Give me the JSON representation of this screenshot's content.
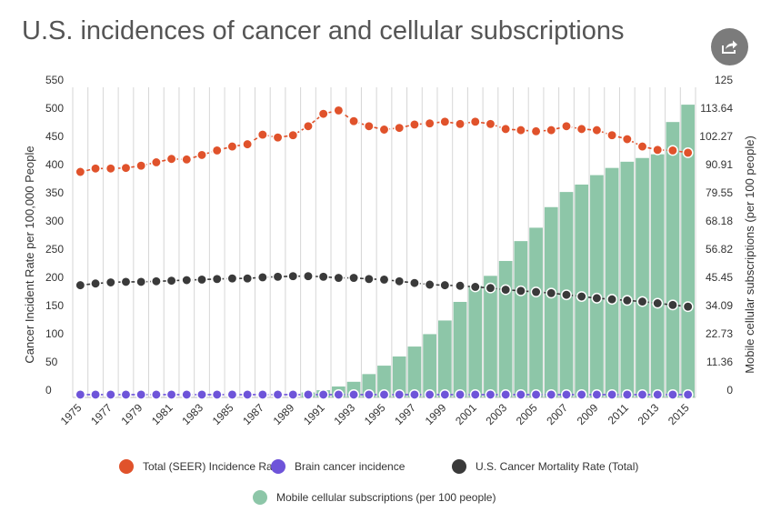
{
  "title": "U.S. incidences of cancer and cellular subscriptions",
  "share_icon": "share-icon",
  "chart_data": {
    "type": "bar",
    "title": "U.S. incidences of cancer and cellular subscriptions",
    "x": [
      1975,
      1976,
      1977,
      1978,
      1979,
      1980,
      1981,
      1982,
      1983,
      1984,
      1985,
      1986,
      1987,
      1988,
      1989,
      1990,
      1991,
      1992,
      1993,
      1994,
      1995,
      1996,
      1997,
      1998,
      1999,
      2000,
      2001,
      2002,
      2003,
      2004,
      2005,
      2006,
      2007,
      2008,
      2009,
      2010,
      2011,
      2012,
      2013,
      2014,
      2015
    ],
    "x_tick_labels": [
      "1975",
      "1977",
      "1979",
      "1981",
      "1983",
      "1985",
      "1987",
      "1989",
      "1991",
      "1993",
      "1995",
      "1997",
      "1999",
      "2001",
      "2003",
      "2005",
      "2007",
      "2009",
      "2011",
      "2013",
      "2015"
    ],
    "ylabel": "Cancer Incident Rate per 100,000 People",
    "ylim": [
      0,
      550
    ],
    "y_ticks": [
      "0",
      "50",
      "100",
      "150",
      "200",
      "250",
      "300",
      "350",
      "400",
      "450",
      "500",
      "550"
    ],
    "y2label": "Mobile cellular subscriptions (per 100 people)",
    "y2lim": [
      0,
      125
    ],
    "y2_ticks": [
      "0",
      "11.36",
      "22.73",
      "34.09",
      "45.45",
      "56.82",
      "68.18",
      "79.55",
      "90.91",
      "102.27",
      "113.64",
      "125"
    ],
    "grid": "vertical",
    "legend_position": "bottom",
    "series": [
      {
        "name": "Total (SEER) Incidence Rate",
        "kind": "line",
        "axis": "left",
        "color": "#e0522b",
        "values": [
          400,
          406,
          406,
          407,
          411,
          417,
          423,
          422,
          430,
          438,
          445,
          449,
          466,
          461,
          465,
          481,
          503,
          509,
          490,
          481,
          475,
          478,
          484,
          486,
          489,
          485,
          489,
          485,
          476,
          474,
          472,
          474,
          481,
          476,
          474,
          465,
          458,
          445,
          439,
          438,
          434
        ]
      },
      {
        "name": "Brain cancer incidence",
        "kind": "line",
        "axis": "left",
        "color": "#6e54d9",
        "values": [
          5,
          5,
          5,
          5,
          5,
          5,
          5,
          5,
          5,
          5,
          5,
          5,
          5,
          5,
          5,
          5,
          5,
          5,
          5,
          5,
          5,
          5,
          5,
          5,
          5,
          5,
          5,
          5,
          5,
          5,
          5,
          5,
          5,
          5,
          5,
          5,
          5,
          5,
          5,
          5,
          5
        ]
      },
      {
        "name": "U.S. Cancer Mortality Rate (Total)",
        "kind": "line",
        "axis": "left",
        "color": "#3a3a3a",
        "values": [
          199,
          202,
          204,
          205,
          205,
          206,
          207,
          208,
          209,
          210,
          211,
          211,
          213,
          214,
          215,
          215,
          214,
          212,
          212,
          210,
          209,
          206,
          203,
          200,
          199,
          198,
          196,
          194,
          191,
          189,
          187,
          185,
          182,
          179,
          176,
          174,
          172,
          170,
          167,
          164,
          161
        ]
      },
      {
        "name": "Mobile cellular subscriptions (per 100 people)",
        "kind": "bar",
        "axis": "right",
        "color": "#8dc6a8",
        "values": [
          0,
          0,
          0,
          0,
          0,
          0,
          0,
          0,
          0,
          0,
          0,
          0,
          0,
          0,
          0,
          2.0,
          2.9,
          4.4,
          6.3,
          9.4,
          12.8,
          16.5,
          20.5,
          25.5,
          31.0,
          38.5,
          45.0,
          49.0,
          55.0,
          63.0,
          68.4,
          76.7,
          82.8,
          85.8,
          89.6,
          92.5,
          95.0,
          96.5,
          98.0,
          111.0,
          118.0
        ]
      }
    ],
    "legend": [
      "Total (SEER) Incidence Rate",
      "Brain cancer incidence",
      "U.S. Cancer Mortality Rate (Total)",
      "Mobile cellular subscriptions (per 100 people)"
    ]
  }
}
